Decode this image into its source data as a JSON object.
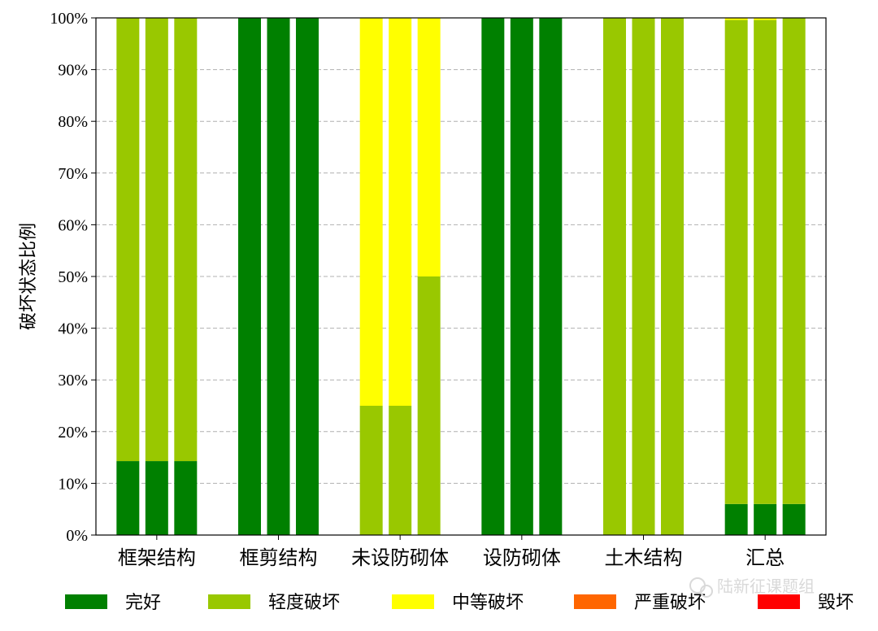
{
  "chart_data": {
    "type": "bar",
    "stacked": true,
    "ylabel": "破坏状态比例",
    "xlabel": "",
    "ylim": [
      0,
      100
    ],
    "y_unit": "%",
    "yticks": [
      "0%",
      "10%",
      "20%",
      "30%",
      "40%",
      "50%",
      "60%",
      "70%",
      "80%",
      "90%",
      "100%"
    ],
    "grid": "horizontal dashed",
    "legend_position": "bottom",
    "categories": [
      "框架结构",
      "框剪结构",
      "未设防砌体",
      "设防砌体",
      "土木结构",
      "汇总"
    ],
    "bars_per_category": 3,
    "series": [
      {
        "name": "完好",
        "color": "#008000",
        "values": [
          [
            14.3,
            14.3,
            14.3
          ],
          [
            100,
            100,
            100
          ],
          [
            0,
            0,
            0
          ],
          [
            100,
            100,
            100
          ],
          [
            0,
            0,
            0
          ],
          [
            6,
            6,
            6
          ]
        ]
      },
      {
        "name": "轻度破坏",
        "color": "#99c800",
        "values": [
          [
            85.7,
            85.7,
            85.7
          ],
          [
            0,
            0,
            0
          ],
          [
            25,
            25,
            50
          ],
          [
            0,
            0,
            0
          ],
          [
            100,
            100,
            100
          ],
          [
            93.6,
            93.6,
            94
          ]
        ]
      },
      {
        "name": "中等破坏",
        "color": "#ffff00",
        "values": [
          [
            0,
            0,
            0
          ],
          [
            0,
            0,
            0
          ],
          [
            75,
            75,
            50
          ],
          [
            0,
            0,
            0
          ],
          [
            0,
            0,
            0
          ],
          [
            0.4,
            0.4,
            0
          ]
        ]
      },
      {
        "name": "严重破坏",
        "color": "#ff6600",
        "values": [
          [
            0,
            0,
            0
          ],
          [
            0,
            0,
            0
          ],
          [
            0,
            0,
            0
          ],
          [
            0,
            0,
            0
          ],
          [
            0,
            0,
            0
          ],
          [
            0,
            0,
            0
          ]
        ]
      },
      {
        "name": "毁坏",
        "color": "#ff0000",
        "values": [
          [
            0,
            0,
            0
          ],
          [
            0,
            0,
            0
          ],
          [
            0,
            0,
            0
          ],
          [
            0,
            0,
            0
          ],
          [
            0,
            0,
            0
          ],
          [
            0,
            0,
            0
          ]
        ]
      }
    ]
  },
  "watermark": {
    "text": "陆新征课题组",
    "icon": "wechat-icon"
  }
}
